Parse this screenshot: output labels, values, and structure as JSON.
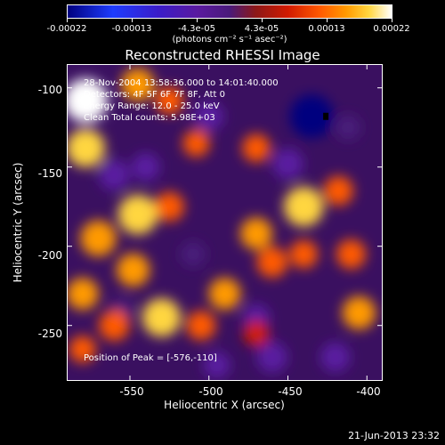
{
  "colorbar": {
    "tick_labels": [
      "-0.00022",
      "-0.00013",
      "-4.3e-05",
      "4.3e-05",
      "0.00013",
      "0.00022"
    ],
    "units": "(photons cm⁻² s⁻¹ asec⁻²)"
  },
  "title": "Reconstructed RHESSI Image",
  "annotations": {
    "time": "28-Nov-2004 13:58:36.000 to 14:01:40.000",
    "detectors": "Detectors: 4F 5F 6F 7F 8F, Att 0",
    "energy": "Energy Range: 12.0 - 25.0 keV",
    "method": "Clean    Total counts: 5.98E+03",
    "peak": "Position of Peak = [-576,-110]"
  },
  "x_axis": {
    "label": "Heliocentric X (arcsec)",
    "ticks": [
      "-550",
      "-500",
      "-450",
      "-400"
    ]
  },
  "y_axis": {
    "label": "Heliocentric Y (arcsec)",
    "ticks": [
      "-100",
      "-150",
      "-200",
      "-250"
    ]
  },
  "footer_date": "21-Jun-2013 23:32",
  "chart_data": {
    "type": "heatmap",
    "title": "Reconstructed RHESSI Image",
    "xlabel": "Heliocentric X (arcsec)",
    "ylabel": "Heliocentric Y (arcsec)",
    "xlim": [
      -590,
      -390
    ],
    "ylim": [
      -285,
      -85
    ],
    "colorbar_range": [
      -0.00022,
      0.00022
    ],
    "colormap": [
      "#00007f",
      "#1e3cff",
      "#3a1cc8",
      "#5a1aa0",
      "#4a1a7a",
      "#8c1818",
      "#d11a00",
      "#ff5a00",
      "#ff9a00",
      "#ffd640",
      "#ffffff"
    ],
    "peak": [
      -576,
      -110
    ],
    "blobs": [
      {
        "x": -578,
        "y": -108,
        "value": 0.0002
      },
      {
        "x": -578,
        "y": -138,
        "value": 0.00016
      },
      {
        "x": -545,
        "y": -98,
        "value": 0.00012
      },
      {
        "x": -525,
        "y": -108,
        "value": 8e-05
      },
      {
        "x": -508,
        "y": -135,
        "value": 7e-05
      },
      {
        "x": -470,
        "y": -138,
        "value": 8e-05
      },
      {
        "x": -570,
        "y": -195,
        "value": 0.00014
      },
      {
        "x": -548,
        "y": -215,
        "value": 0.00012
      },
      {
        "x": -545,
        "y": -180,
        "value": 0.00017
      },
      {
        "x": -525,
        "y": -175,
        "value": 9e-05
      },
      {
        "x": -580,
        "y": -230,
        "value": 0.00011
      },
      {
        "x": -560,
        "y": -250,
        "value": 0.0001
      },
      {
        "x": -530,
        "y": -245,
        "value": 0.00016
      },
      {
        "x": -505,
        "y": -250,
        "value": 9e-05
      },
      {
        "x": -490,
        "y": -230,
        "value": 0.00011
      },
      {
        "x": -470,
        "y": -192,
        "value": 0.00011
      },
      {
        "x": -460,
        "y": -210,
        "value": 0.0001
      },
      {
        "x": -440,
        "y": -175,
        "value": 0.00017
      },
      {
        "x": -418,
        "y": -165,
        "value": 9e-05
      },
      {
        "x": -440,
        "y": -205,
        "value": 8e-05
      },
      {
        "x": -410,
        "y": -205,
        "value": 9e-05
      },
      {
        "x": -405,
        "y": -242,
        "value": 0.00012
      },
      {
        "x": -470,
        "y": -255,
        "value": 6e-05
      },
      {
        "x": -580,
        "y": -265,
        "value": 7e-05
      },
      {
        "x": -435,
        "y": -118,
        "value": -0.0002
      },
      {
        "x": -450,
        "y": -148,
        "value": -0.0001
      },
      {
        "x": -500,
        "y": -118,
        "value": -9e-05
      },
      {
        "x": -540,
        "y": -150,
        "value": -8e-05
      },
      {
        "x": -560,
        "y": -155,
        "value": -0.0001
      },
      {
        "x": -470,
        "y": -245,
        "value": -7e-05
      },
      {
        "x": -460,
        "y": -270,
        "value": -0.0001
      },
      {
        "x": -420,
        "y": -270,
        "value": -9e-05
      },
      {
        "x": -510,
        "y": -205,
        "value": -6e-05
      },
      {
        "x": -495,
        "y": -275,
        "value": -7e-05
      },
      {
        "x": -555,
        "y": -240,
        "value": -4e-05
      },
      {
        "x": -412,
        "y": -125,
        "value": -6e-05
      }
    ]
  }
}
